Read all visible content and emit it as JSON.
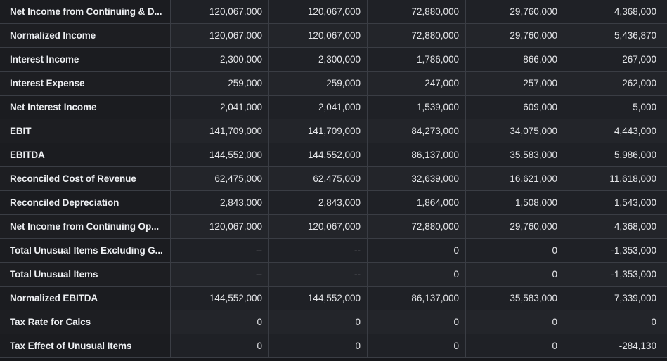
{
  "rows": [
    {
      "label": "Net Income from Continuing & D...",
      "values": [
        "120,067,000",
        "120,067,000",
        "72,880,000",
        "29,760,000",
        "4,368,000"
      ]
    },
    {
      "label": "Normalized Income",
      "values": [
        "120,067,000",
        "120,067,000",
        "72,880,000",
        "29,760,000",
        "5,436,870"
      ]
    },
    {
      "label": "Interest Income",
      "values": [
        "2,300,000",
        "2,300,000",
        "1,786,000",
        "866,000",
        "267,000"
      ]
    },
    {
      "label": "Interest Expense",
      "values": [
        "259,000",
        "259,000",
        "247,000",
        "257,000",
        "262,000"
      ]
    },
    {
      "label": "Net Interest Income",
      "values": [
        "2,041,000",
        "2,041,000",
        "1,539,000",
        "609,000",
        "5,000"
      ]
    },
    {
      "label": "EBIT",
      "values": [
        "141,709,000",
        "141,709,000",
        "84,273,000",
        "34,075,000",
        "4,443,000"
      ]
    },
    {
      "label": "EBITDA",
      "values": [
        "144,552,000",
        "144,552,000",
        "86,137,000",
        "35,583,000",
        "5,986,000"
      ]
    },
    {
      "label": "Reconciled Cost of Revenue",
      "values": [
        "62,475,000",
        "62,475,000",
        "32,639,000",
        "16,621,000",
        "11,618,000"
      ]
    },
    {
      "label": "Reconciled Depreciation",
      "values": [
        "2,843,000",
        "2,843,000",
        "1,864,000",
        "1,508,000",
        "1,543,000"
      ]
    },
    {
      "label": "Net Income from Continuing Op...",
      "values": [
        "120,067,000",
        "120,067,000",
        "72,880,000",
        "29,760,000",
        "4,368,000"
      ]
    },
    {
      "label": "Total Unusual Items Excluding G...",
      "values": [
        "--",
        "--",
        "0",
        "0",
        "-1,353,000"
      ]
    },
    {
      "label": "Total Unusual Items",
      "values": [
        "--",
        "--",
        "0",
        "0",
        "-1,353,000"
      ]
    },
    {
      "label": "Normalized EBITDA",
      "values": [
        "144,552,000",
        "144,552,000",
        "86,137,000",
        "35,583,000",
        "7,339,000"
      ]
    },
    {
      "label": "Tax Rate for Calcs",
      "values": [
        "0",
        "0",
        "0",
        "0",
        "0"
      ]
    },
    {
      "label": "Tax Effect of Unusual Items",
      "values": [
        "0",
        "0",
        "0",
        "0",
        "-284,130"
      ]
    }
  ]
}
